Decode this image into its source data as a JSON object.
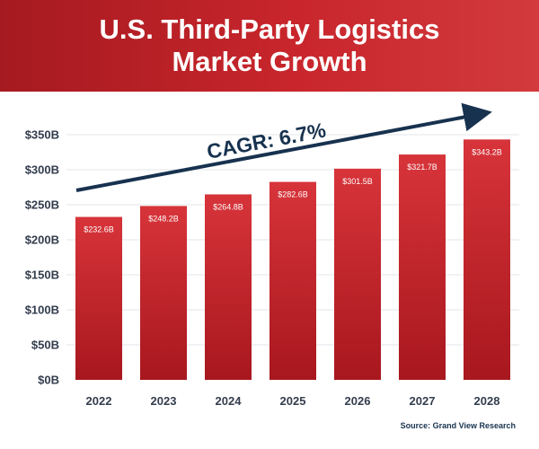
{
  "header": {
    "title_line1": "U.S. Third-Party Logistics",
    "title_line2": "Market Growth"
  },
  "source": "Source: Grand View Research",
  "chart_data": {
    "type": "bar",
    "categories": [
      "2022",
      "2023",
      "2024",
      "2025",
      "2026",
      "2027",
      "2028"
    ],
    "values": [
      232.6,
      248.2,
      264.8,
      282.6,
      301.5,
      321.7,
      343.2
    ],
    "data_labels": [
      "$232.6B",
      "$248.2B",
      "$264.8B",
      "$282.6B",
      "$301.5B",
      "$321.7B",
      "$343.2B"
    ],
    "yticks": [
      0,
      50,
      100,
      150,
      200,
      250,
      300,
      350
    ],
    "ytick_labels": [
      "$0B",
      "$50B",
      "$100B",
      "$150B",
      "$200B",
      "$250B",
      "$300B",
      "$350B"
    ],
    "ylim": [
      0,
      350
    ],
    "title": "U.S. Third-Party Logistics Market Growth",
    "xlabel": "",
    "ylabel": "",
    "grid": true,
    "annotation": "CAGR: 6.7%",
    "colors": {
      "bar_top": "#d7343a",
      "bar_bottom": "#a8171e",
      "arrow": "#17324f",
      "grid": "#e3e6ea",
      "header": "#c0232a"
    }
  }
}
